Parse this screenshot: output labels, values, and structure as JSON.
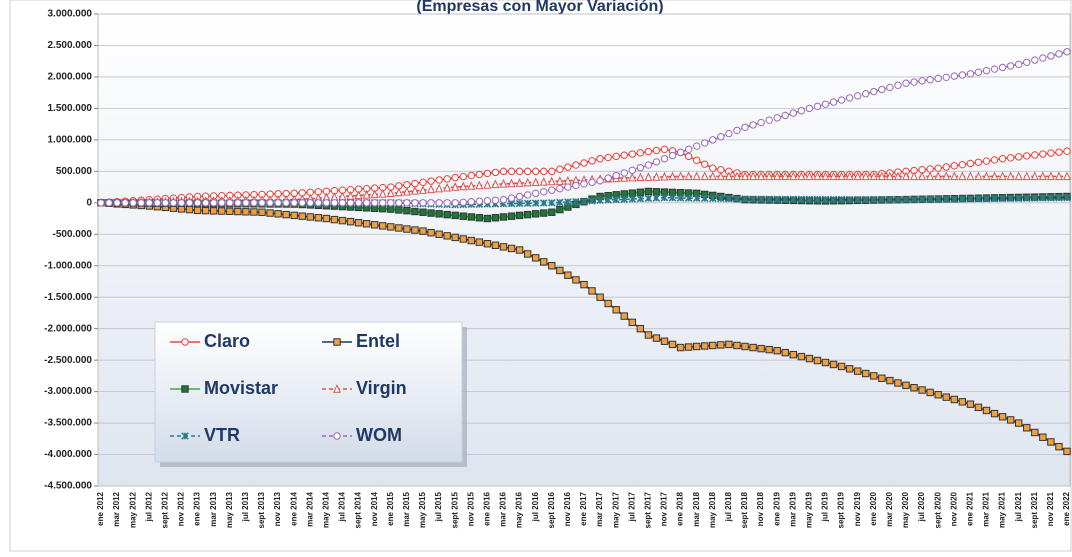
{
  "chart_data": {
    "type": "line",
    "title": "(Empresas con Mayor Variación)",
    "ylim": [
      -4500000,
      3000000
    ],
    "yticks": [
      {
        "value": 3000000,
        "label": "3.000.000"
      },
      {
        "value": 2500000,
        "label": "2.500.000"
      },
      {
        "value": 2000000,
        "label": "2.000.000"
      },
      {
        "value": 1500000,
        "label": "1.500.000"
      },
      {
        "value": 1000000,
        "label": "1.000.000"
      },
      {
        "value": 500000,
        "label": "500.000"
      },
      0,
      {
        "value": -500000,
        "label": "-500.000"
      },
      {
        "value": -1000000,
        "label": "-1.000.000"
      },
      {
        "value": -1500000,
        "label": "-1.500.000"
      },
      {
        "value": -2000000,
        "label": "-2.000.000"
      },
      {
        "value": -2500000,
        "label": "-2.500.000"
      },
      {
        "value": -3000000,
        "label": "-3.000.000"
      },
      {
        "value": -3500000,
        "label": "-3.500.000"
      },
      {
        "value": -4000000,
        "label": "-4.000.000"
      },
      {
        "value": -4500000,
        "label": "-4.500.000"
      }
    ],
    "grid": true,
    "legend": "lower left",
    "categories": [
      "ene 2012",
      null,
      "mar 2012",
      null,
      "may 2012",
      null,
      "jul 2012",
      null,
      "sept 2012",
      null,
      "nov 2012",
      null,
      "ene 2013",
      null,
      "mar 2013",
      null,
      "may 2013",
      null,
      "jul 2013",
      null,
      "sept 2013",
      null,
      "nov 2013",
      null,
      "ene 2014",
      null,
      "mar 2014",
      null,
      "may 2014",
      null,
      "jul 2014",
      null,
      "sept 2014",
      null,
      "nov 2014",
      null,
      "ene 2015",
      null,
      "mar 2015",
      null,
      "may 2015",
      null,
      "jul 2015",
      null,
      "sept 2015",
      null,
      "nov 2015",
      null,
      "ene 2016",
      null,
      "mar 2016",
      null,
      "may 2016",
      null,
      "jul 2016",
      null,
      "sept 2016",
      null,
      "nov 2016",
      null,
      "ene 2017",
      null,
      "mar 2017",
      null,
      "may 2017",
      null,
      "jul 2017",
      null,
      "sept 2017",
      null,
      "nov 2017",
      null,
      "ene 2018",
      null,
      "mar 2018",
      null,
      "may 2018",
      null,
      "jul 2018",
      null,
      "sept 2018",
      null,
      "nov 2018",
      null,
      "ene 2019",
      null,
      "mar 2019",
      null,
      "may 2019",
      null,
      "jul 2019",
      null,
      "sept 2019",
      null,
      "nov 2019",
      null,
      "ene 2020",
      null,
      "mar 2020",
      null,
      "may 2020",
      null,
      "jul 2020",
      null,
      "sept 2020",
      null,
      "nov 2020",
      null,
      "ene 2021",
      null,
      "mar 2021",
      null,
      "may 2021",
      null,
      "jul 2021",
      null,
      "sept 2021",
      null,
      "nov 2021",
      null,
      "ene 2022"
    ],
    "series": [
      {
        "name": "Claro",
        "color": "#e8443a",
        "marker": "circle",
        "marker_color": "#ffffff",
        "dashed": false,
        "values": [
          0,
          8000,
          17000,
          25000,
          33000,
          42000,
          50000,
          58000,
          67000,
          75000,
          83000,
          92000,
          100000,
          104000,
          108000,
          113000,
          117000,
          121000,
          125000,
          129000,
          133000,
          138000,
          142000,
          146000,
          150000,
          158000,
          167000,
          175000,
          183000,
          192000,
          200000,
          208000,
          217000,
          225000,
          233000,
          242000,
          250000,
          269000,
          288000,
          306000,
          325000,
          344000,
          363000,
          381000,
          400000,
          417000,
          433000,
          450000,
          467000,
          483000,
          500000,
          500000,
          500000,
          500000,
          500000,
          500000,
          500000,
          533000,
          567000,
          600000,
          633000,
          667000,
          700000,
          719000,
          738000,
          756000,
          775000,
          794000,
          813000,
          831000,
          850000,
          825000,
          800000,
          738000,
          675000,
          613000,
          550000,
          525000,
          500000,
          475000,
          450000,
          450000,
          450000,
          450000,
          450000,
          450000,
          450000,
          450000,
          450000,
          450000,
          450000,
          450000,
          450000,
          450000,
          450000,
          450000,
          450000,
          463000,
          475000,
          488000,
          500000,
          513000,
          525000,
          538000,
          550000,
          569000,
          588000,
          606000,
          625000,
          644000,
          663000,
          681000,
          700000,
          715000,
          730000,
          745000,
          760000,
          775000,
          790000,
          805000,
          820000
        ]
      },
      {
        "name": "Entel",
        "color": "#1f3a5f",
        "marker": "square",
        "marker_color": "#f0a040",
        "dashed": false,
        "values": [
          0,
          -8000,
          -17000,
          -25000,
          -33000,
          -42000,
          -50000,
          -62000,
          -73000,
          -85000,
          -97000,
          -108000,
          -120000,
          -124000,
          -128000,
          -131000,
          -135000,
          -139000,
          -143000,
          -146000,
          -150000,
          -163000,
          -175000,
          -188000,
          -200000,
          -213000,
          -225000,
          -238000,
          -250000,
          -267000,
          -283000,
          -300000,
          -317000,
          -333000,
          -350000,
          -367000,
          -383000,
          -400000,
          -417000,
          -433000,
          -450000,
          -475000,
          -500000,
          -525000,
          -550000,
          -575000,
          -600000,
          -625000,
          -650000,
          -675000,
          -700000,
          -725000,
          -750000,
          -813000,
          -875000,
          -938000,
          -1000000,
          -1075000,
          -1150000,
          -1225000,
          -1300000,
          -1400000,
          -1500000,
          -1600000,
          -1700000,
          -1800000,
          -1900000,
          -2000000,
          -2100000,
          -2150000,
          -2200000,
          -2250000,
          -2300000,
          -2292000,
          -2283000,
          -2275000,
          -2267000,
          -2258000,
          -2250000,
          -2267000,
          -2283000,
          -2300000,
          -2317000,
          -2333000,
          -2350000,
          -2381000,
          -2413000,
          -2444000,
          -2475000,
          -2506000,
          -2538000,
          -2569000,
          -2600000,
          -2638000,
          -2675000,
          -2713000,
          -2750000,
          -2788000,
          -2825000,
          -2863000,
          -2900000,
          -2938000,
          -2975000,
          -3013000,
          -3050000,
          -3088000,
          -3125000,
          -3163000,
          -3200000,
          -3250000,
          -3300000,
          -3350000,
          -3400000,
          -3450000,
          -3500000,
          -3575000,
          -3650000,
          -3725000,
          -3800000,
          -3875000,
          -3950000
        ]
      },
      {
        "name": "Movistar",
        "color": "#4aa04a",
        "marker": "square",
        "marker_color": "#1a7a3a",
        "dashed": false,
        "values": [
          0,
          -1000,
          -2000,
          -3000,
          -3000,
          -4000,
          -5000,
          -6000,
          -7000,
          -8000,
          -8000,
          -9000,
          -10000,
          -11000,
          -12000,
          -13000,
          -13000,
          -14000,
          -15000,
          -16000,
          -17000,
          -18000,
          -18000,
          -19000,
          -20000,
          -27000,
          -33000,
          -40000,
          -47000,
          -53000,
          -60000,
          -67000,
          -73000,
          -80000,
          -87000,
          -93000,
          -100000,
          -113000,
          -125000,
          -138000,
          -150000,
          -163000,
          -175000,
          -188000,
          -200000,
          -213000,
          -225000,
          -238000,
          -250000,
          -238000,
          -225000,
          -213000,
          -200000,
          -188000,
          -175000,
          -163000,
          -150000,
          -108000,
          -67000,
          -25000,
          17000,
          58000,
          100000,
          113000,
          127000,
          140000,
          153000,
          167000,
          180000,
          175000,
          170000,
          165000,
          160000,
          155000,
          150000,
          133000,
          117000,
          100000,
          83000,
          67000,
          50000,
          48000,
          46000,
          44000,
          42000,
          40000,
          38000,
          36000,
          34000,
          32000,
          30000,
          32000,
          34000,
          36000,
          39000,
          41000,
          43000,
          45000,
          47000,
          49000,
          51000,
          54000,
          56000,
          58000,
          60000,
          63000,
          65000,
          68000,
          70000,
          73000,
          75000,
          78000,
          80000,
          83000,
          85000,
          88000,
          90000,
          93000,
          95000,
          98000,
          100000
        ]
      },
      {
        "name": "Virgin",
        "color": "#e05050",
        "marker": "triangle",
        "marker_color": "#ffffff",
        "dashed": true,
        "values": [
          0,
          2000,
          4000,
          6000,
          8000,
          10000,
          13000,
          15000,
          17000,
          19000,
          21000,
          23000,
          25000,
          27000,
          29000,
          31000,
          33000,
          35000,
          38000,
          40000,
          42000,
          44000,
          46000,
          48000,
          50000,
          58000,
          67000,
          75000,
          83000,
          92000,
          100000,
          108000,
          117000,
          125000,
          133000,
          142000,
          150000,
          163000,
          175000,
          188000,
          200000,
          213000,
          225000,
          238000,
          250000,
          258000,
          267000,
          275000,
          283000,
          292000,
          300000,
          306000,
          313000,
          319000,
          325000,
          331000,
          338000,
          344000,
          350000,
          356000,
          363000,
          369000,
          375000,
          381000,
          388000,
          394000,
          400000,
          403000,
          407000,
          410000,
          413000,
          417000,
          420000,
          420000,
          420000,
          420000,
          420000,
          420000,
          420000,
          420000,
          420000,
          420000,
          420000,
          420000,
          420000,
          420000,
          420000,
          420000,
          420000,
          420000,
          420000,
          420000,
          420000,
          420000,
          420000,
          420000,
          420000,
          420000,
          420000,
          420000,
          420000,
          420000,
          420000,
          420000,
          420000,
          420000,
          420000,
          420000,
          420000,
          420000,
          420000,
          420000,
          420000,
          420000,
          420000,
          420000,
          420000,
          420000,
          420000,
          420000,
          420000
        ]
      },
      {
        "name": "VTR",
        "color": "#2a7a8a",
        "marker": "x",
        "marker_color": "#2a7a8a",
        "dashed": true,
        "values": [
          0,
          0,
          0,
          0,
          0,
          0,
          0,
          0,
          0,
          0,
          0,
          0,
          0,
          0,
          0,
          0,
          0,
          0,
          0,
          0,
          0,
          0,
          0,
          0,
          0,
          0,
          0,
          0,
          0,
          0,
          0,
          0,
          0,
          0,
          0,
          0,
          0,
          -4000,
          -8000,
          -11000,
          -15000,
          -19000,
          -23000,
          -26000,
          -30000,
          -28000,
          -25000,
          -23000,
          -20000,
          -18000,
          -15000,
          -13000,
          -10000,
          -8000,
          -5000,
          -3000,
          0,
          6000,
          13000,
          19000,
          25000,
          31000,
          38000,
          44000,
          50000,
          55000,
          60000,
          65000,
          70000,
          75000,
          80000,
          78000,
          76000,
          74000,
          72000,
          70000,
          68000,
          66000,
          64000,
          62000,
          60000,
          59000,
          59000,
          58000,
          58000,
          57000,
          57000,
          56000,
          56000,
          55000,
          55000,
          54000,
          54000,
          53000,
          53000,
          52000,
          52000,
          51000,
          51000,
          50000,
          50000,
          52000,
          53000,
          55000,
          56000,
          58000,
          59000,
          61000,
          62000,
          64000,
          65000,
          67000,
          68000,
          70000,
          71000,
          73000,
          74000,
          76000,
          77000,
          79000,
          80000
        ]
      },
      {
        "name": "WOM",
        "color": "#9a6ab8",
        "marker": "circle",
        "marker_color": "#ffffff",
        "dashed": true,
        "values": [
          0,
          0,
          0,
          0,
          0,
          0,
          0,
          0,
          0,
          0,
          0,
          0,
          0,
          0,
          0,
          0,
          0,
          0,
          0,
          0,
          0,
          0,
          0,
          0,
          0,
          0,
          0,
          0,
          0,
          0,
          0,
          0,
          0,
          0,
          0,
          0,
          0,
          0,
          0,
          0,
          0,
          0,
          0,
          0,
          0,
          8000,
          17000,
          25000,
          33000,
          42000,
          50000,
          75000,
          100000,
          125000,
          150000,
          175000,
          200000,
          225000,
          250000,
          275000,
          300000,
          325000,
          350000,
          392000,
          433000,
          475000,
          517000,
          558000,
          600000,
          650000,
          700000,
          750000,
          800000,
          850000,
          900000,
          950000,
          1000000,
          1050000,
          1100000,
          1150000,
          1200000,
          1238000,
          1275000,
          1313000,
          1350000,
          1388000,
          1425000,
          1463000,
          1500000,
          1533000,
          1567000,
          1600000,
          1633000,
          1667000,
          1700000,
          1733000,
          1767000,
          1800000,
          1833000,
          1867000,
          1900000,
          1919000,
          1938000,
          1956000,
          1975000,
          1994000,
          2013000,
          2031000,
          2050000,
          2075000,
          2100000,
          2125000,
          2150000,
          2175000,
          2200000,
          2233000,
          2267000,
          2300000,
          2333000,
          2367000,
          2400000
        ]
      }
    ]
  }
}
